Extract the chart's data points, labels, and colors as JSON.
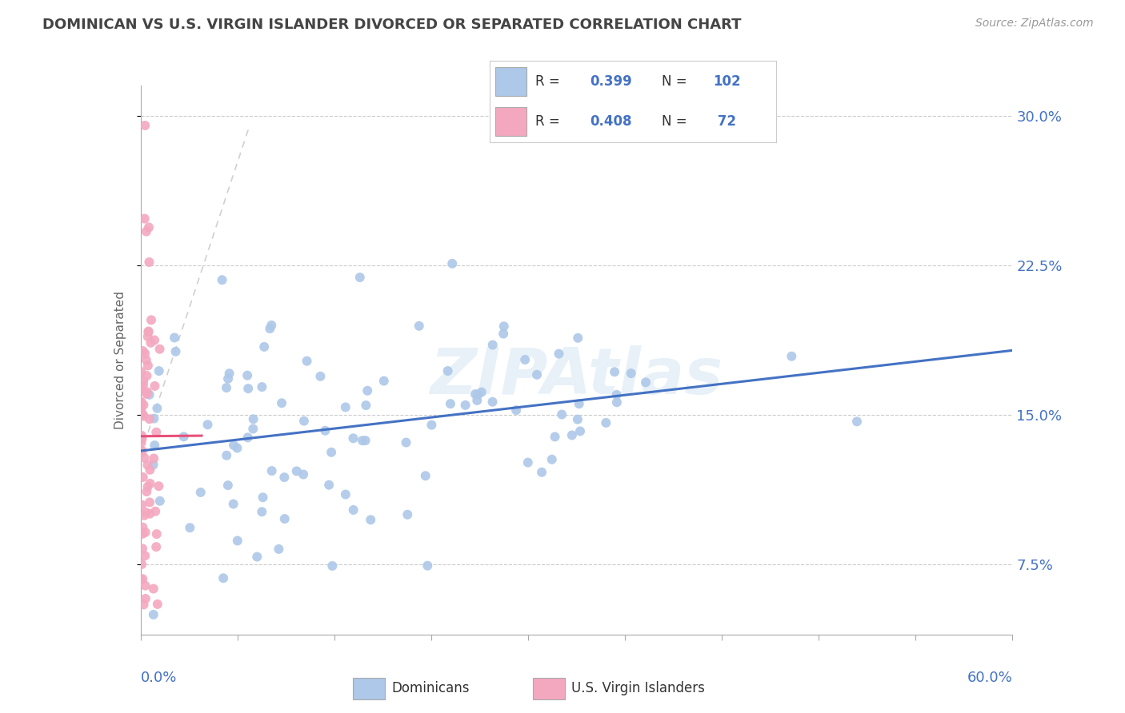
{
  "title": "DOMINICAN VS U.S. VIRGIN ISLANDER DIVORCED OR SEPARATED CORRELATION CHART",
  "source": "Source: ZipAtlas.com",
  "ylabel": "Divorced or Separated",
  "ytick_labels": [
    "7.5%",
    "15.0%",
    "22.5%",
    "30.0%"
  ],
  "ytick_values": [
    0.075,
    0.15,
    0.225,
    0.3
  ],
  "xmin": 0.0,
  "xmax": 0.6,
  "ymin": 0.04,
  "ymax": 0.315,
  "blue_color": "#adc8e8",
  "blue_line_color": "#4472c4",
  "pink_color": "#f4a8c0",
  "pink_line_color": "#e8507a",
  "R_blue": 0.399,
  "N_blue": 102,
  "R_pink": 0.408,
  "N_pink": 72,
  "axis_color": "#4472c4",
  "watermark": "ZIPAtlas",
  "title_fontsize": 13,
  "source_fontsize": 10
}
